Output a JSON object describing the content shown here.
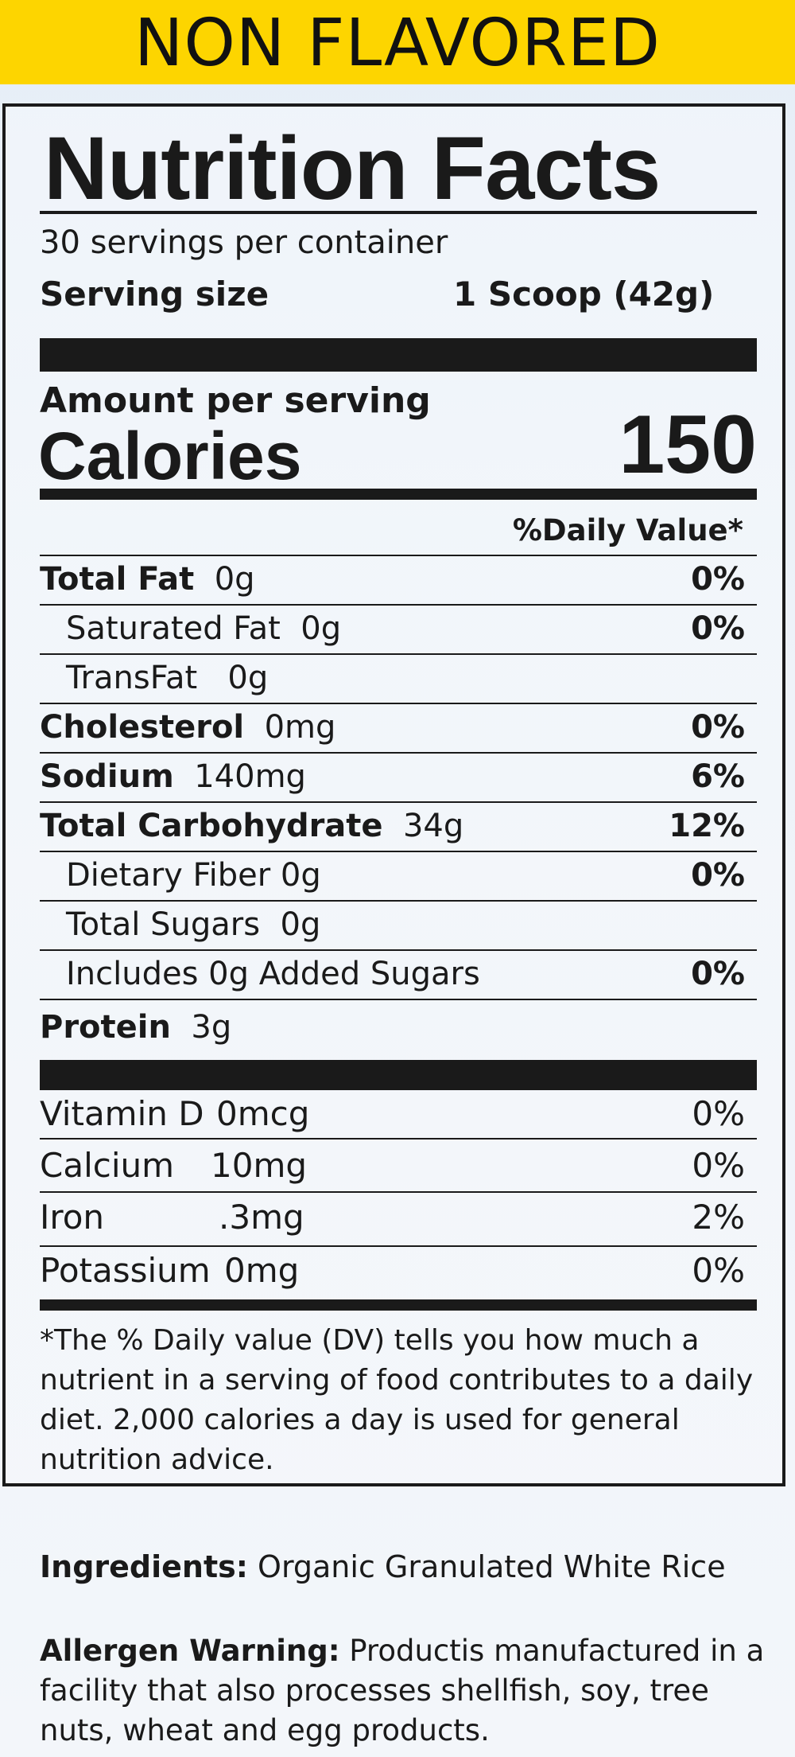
{
  "banner": "NON FLAVORED",
  "label": {
    "title": "Nutrition Facts",
    "servings_per_container": "30 servings per container",
    "serving_size_label": "Serving size",
    "serving_size_value": "1 Scoop (42g)",
    "amount_per_serving": "Amount per serving",
    "calories_label": "Calories",
    "calories_value": "150",
    "daily_value_header": "%Daily Value*",
    "nutrients": [
      {
        "name": "Total Fat",
        "amount": "0g",
        "dv": "0%"
      },
      {
        "name": "Saturated Fat",
        "amount": "0g",
        "dv": "0%"
      },
      {
        "name": "TransFat",
        "amount": "0g",
        "dv": ""
      },
      {
        "name": "Cholesterol",
        "amount": "0mg",
        "dv": "0%"
      },
      {
        "name": "Sodium",
        "amount": "140mg",
        "dv": "6%"
      },
      {
        "name": "Total Carbohydrate",
        "amount": "34g",
        "dv": "12%"
      },
      {
        "name": "Dietary Fiber 0g",
        "amount": "",
        "dv": "0%"
      },
      {
        "name": "Total Sugars",
        "amount": "0g",
        "dv": ""
      },
      {
        "name": "Includes 0g Added Sugars",
        "amount": "",
        "dv": "0%"
      },
      {
        "name": "Protein",
        "amount": "3g",
        "dv": ""
      }
    ],
    "vitamins": [
      {
        "name": "Vitamin D",
        "amount": "0mcg",
        "dv": "0%"
      },
      {
        "name": "Calcium",
        "amount": "10mg",
        "dv": "0%"
      },
      {
        "name": "Iron",
        "amount": ".3mg",
        "dv": "2%"
      },
      {
        "name": "Potassium",
        "amount": "0mg",
        "dv": "0%"
      }
    ],
    "footnote": "*The % Daily value (DV) tells you how much a nutrient in a serving of food contributes to a daily diet. 2,000 calories a day is used for general nutrition advice."
  },
  "ingredients": {
    "label": "Ingredients:",
    "text": "Organic Granulated White Rice"
  },
  "allergen": {
    "label": "Allergen Warning:",
    "text": "Productis manufactured in a facility that also processes shellfish, soy, tree nuts, wheat and egg products."
  }
}
